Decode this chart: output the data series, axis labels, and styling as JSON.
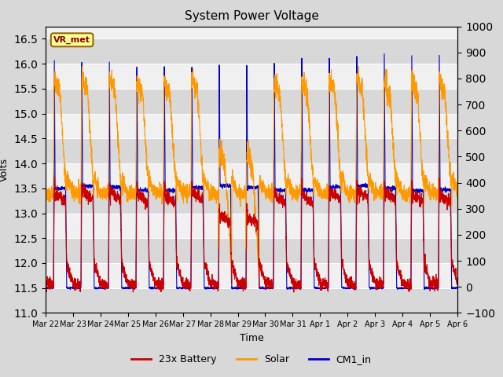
{
  "title": "System Power Voltage",
  "xlabel": "Time",
  "ylabel_left": "Volts",
  "ylabel_right": "",
  "ylim_left": [
    11.0,
    16.75
  ],
  "ylim_right": [
    -100,
    1000
  ],
  "yticks_left": [
    11.0,
    11.5,
    12.0,
    12.5,
    13.0,
    13.5,
    14.0,
    14.5,
    15.0,
    15.5,
    16.0,
    16.5
  ],
  "yticks_right": [
    -100,
    0,
    100,
    200,
    300,
    400,
    500,
    600,
    700,
    800,
    900,
    1000
  ],
  "xtick_labels": [
    "Mar 22",
    "Mar 23",
    "Mar 24",
    "Mar 25",
    "Mar 26",
    "Mar 27",
    "Mar 28",
    "Mar 29",
    "Mar 30",
    "Mar 31",
    "Apr 1",
    "Apr 2",
    "Apr 3",
    "Apr 4",
    "Apr 5",
    "Apr 6"
  ],
  "annotation_text": "VR_met",
  "bg_color": "#d8d8d8",
  "plot_bg_color": "#f0f0f0",
  "grid_color": "#ffffff",
  "legend_entries": [
    "23x Battery",
    "Solar",
    "CM1_in"
  ],
  "line_battery_color": "#cc0000",
  "line_solar_color": "#ff9900",
  "line_cm1_color": "#0000cc"
}
